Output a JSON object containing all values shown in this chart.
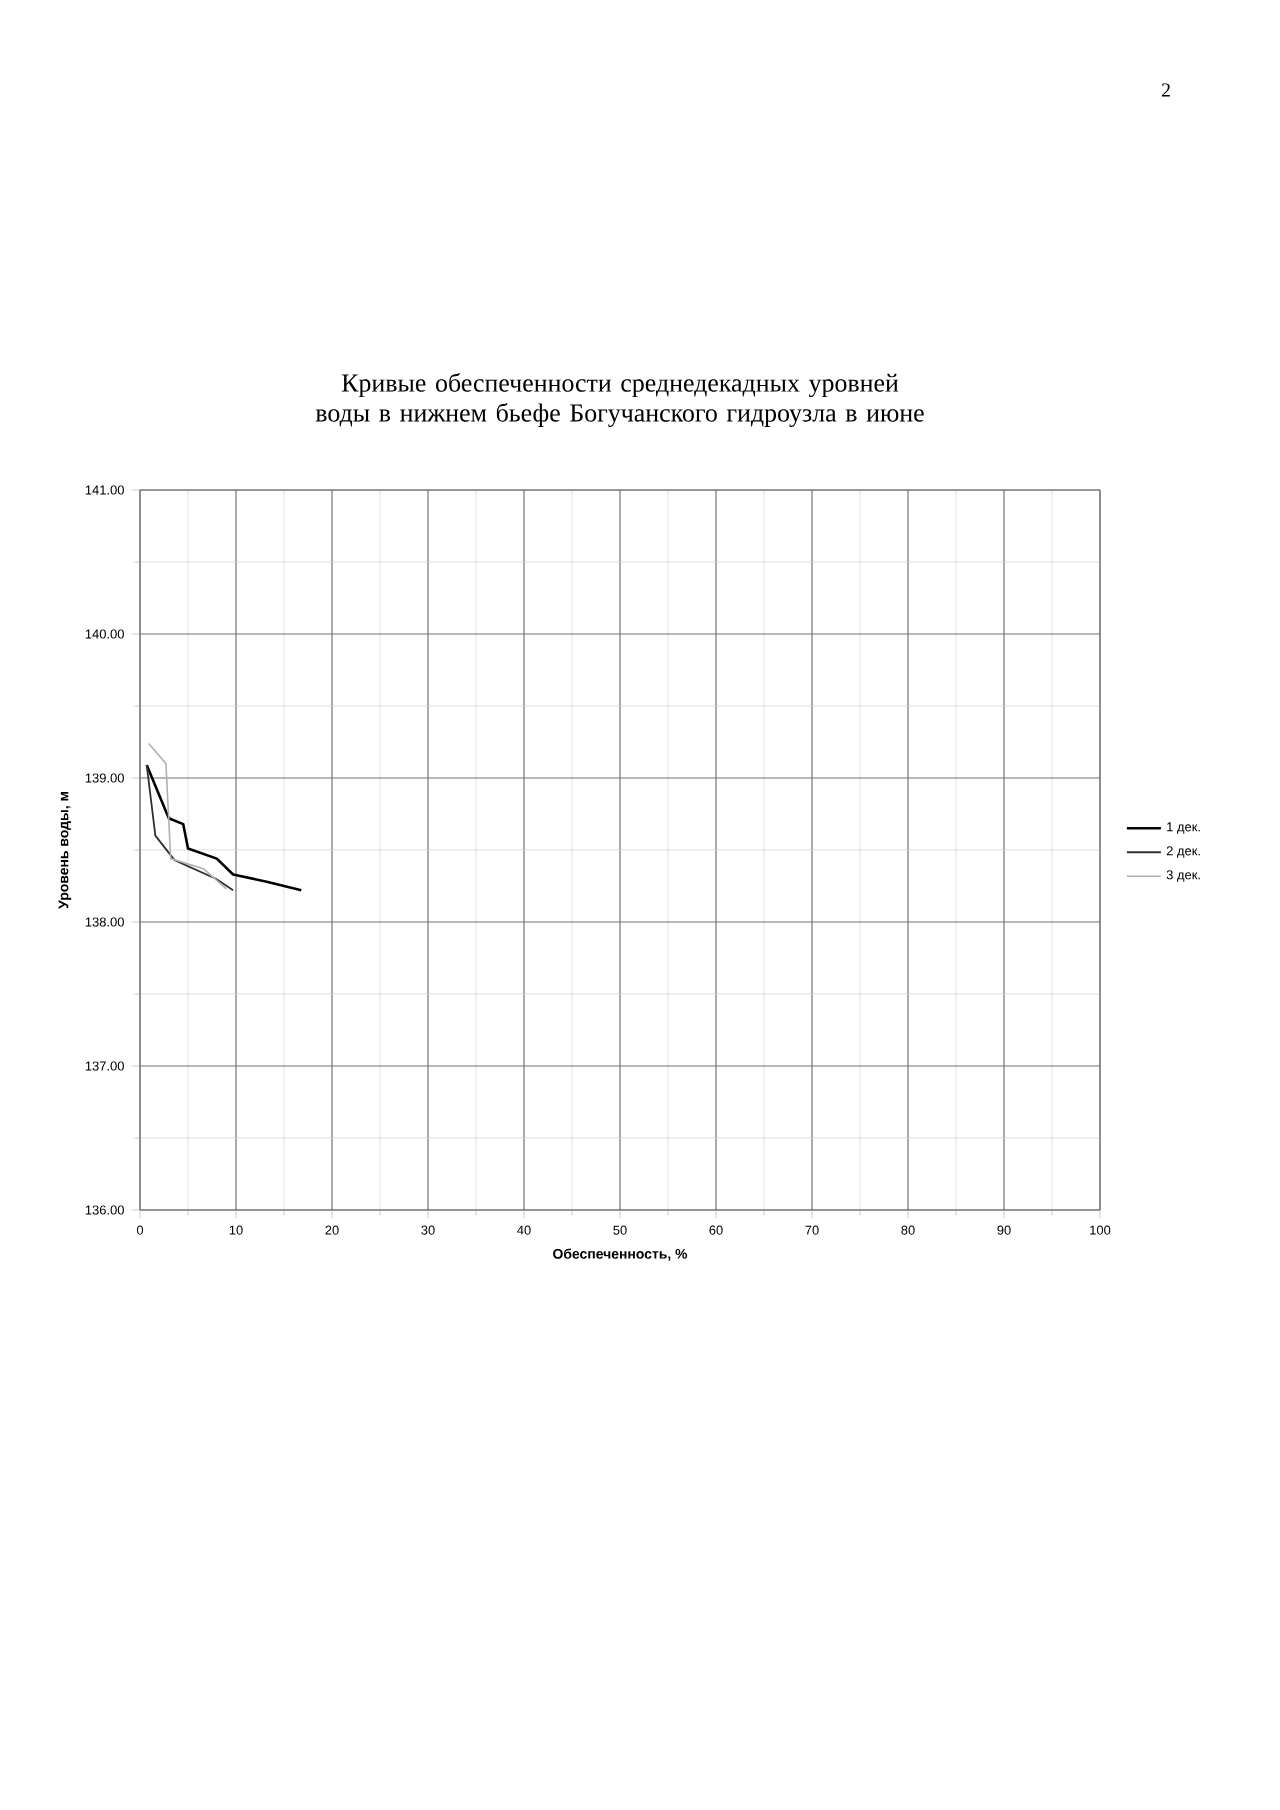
{
  "chart_data": {
    "type": "line",
    "title": "Кривые обеспеченности среднедекадных уровней воды в нижнем бьефе Богучанского гидроузла в июне",
    "xlabel": "Обеспеченность, %",
    "ylabel": "Уровень воды, м",
    "annotations": [
      "2"
    ],
    "xlim": [
      0,
      100
    ],
    "xticks": [
      0,
      10,
      20,
      30,
      40,
      50,
      60,
      70,
      80,
      90,
      100
    ],
    "ylim": [
      136,
      141
    ],
    "yticks": [
      {
        "value": 136,
        "label": "136.00"
      },
      {
        "value": 137,
        "label": "137.00"
      },
      {
        "value": 138,
        "label": "138.00"
      },
      {
        "value": 139,
        "label": "139.00"
      },
      {
        "value": 140,
        "label": "140.00"
      },
      {
        "value": 141,
        "label": "141.00"
      }
    ],
    "grid": true,
    "legend": "right",
    "marker": "none",
    "line_style": "solid",
    "series": [
      {
        "name": "1 дек.",
        "color": "#000000",
        "x": [
          0.7,
          3.0,
          4.5,
          5.0,
          8.0,
          9.7,
          13.2,
          16.8
        ],
        "values": [
          139.09,
          138.72,
          138.68,
          138.51,
          138.44,
          138.33,
          138.28,
          138.22
        ]
      },
      {
        "name": "2 дек.",
        "color": "#303030",
        "x": [
          0.7,
          1.6,
          3.6,
          7.9,
          9.7
        ],
        "values": [
          139.09,
          138.6,
          138.43,
          138.3,
          138.22
        ]
      },
      {
        "name": "3 дек.",
        "color": "#b0b0b0",
        "x": [
          0.9,
          2.7,
          3.2,
          6.6,
          9.0
        ],
        "values": [
          139.24,
          139.1,
          138.44,
          138.37,
          138.23
        ]
      }
    ]
  }
}
